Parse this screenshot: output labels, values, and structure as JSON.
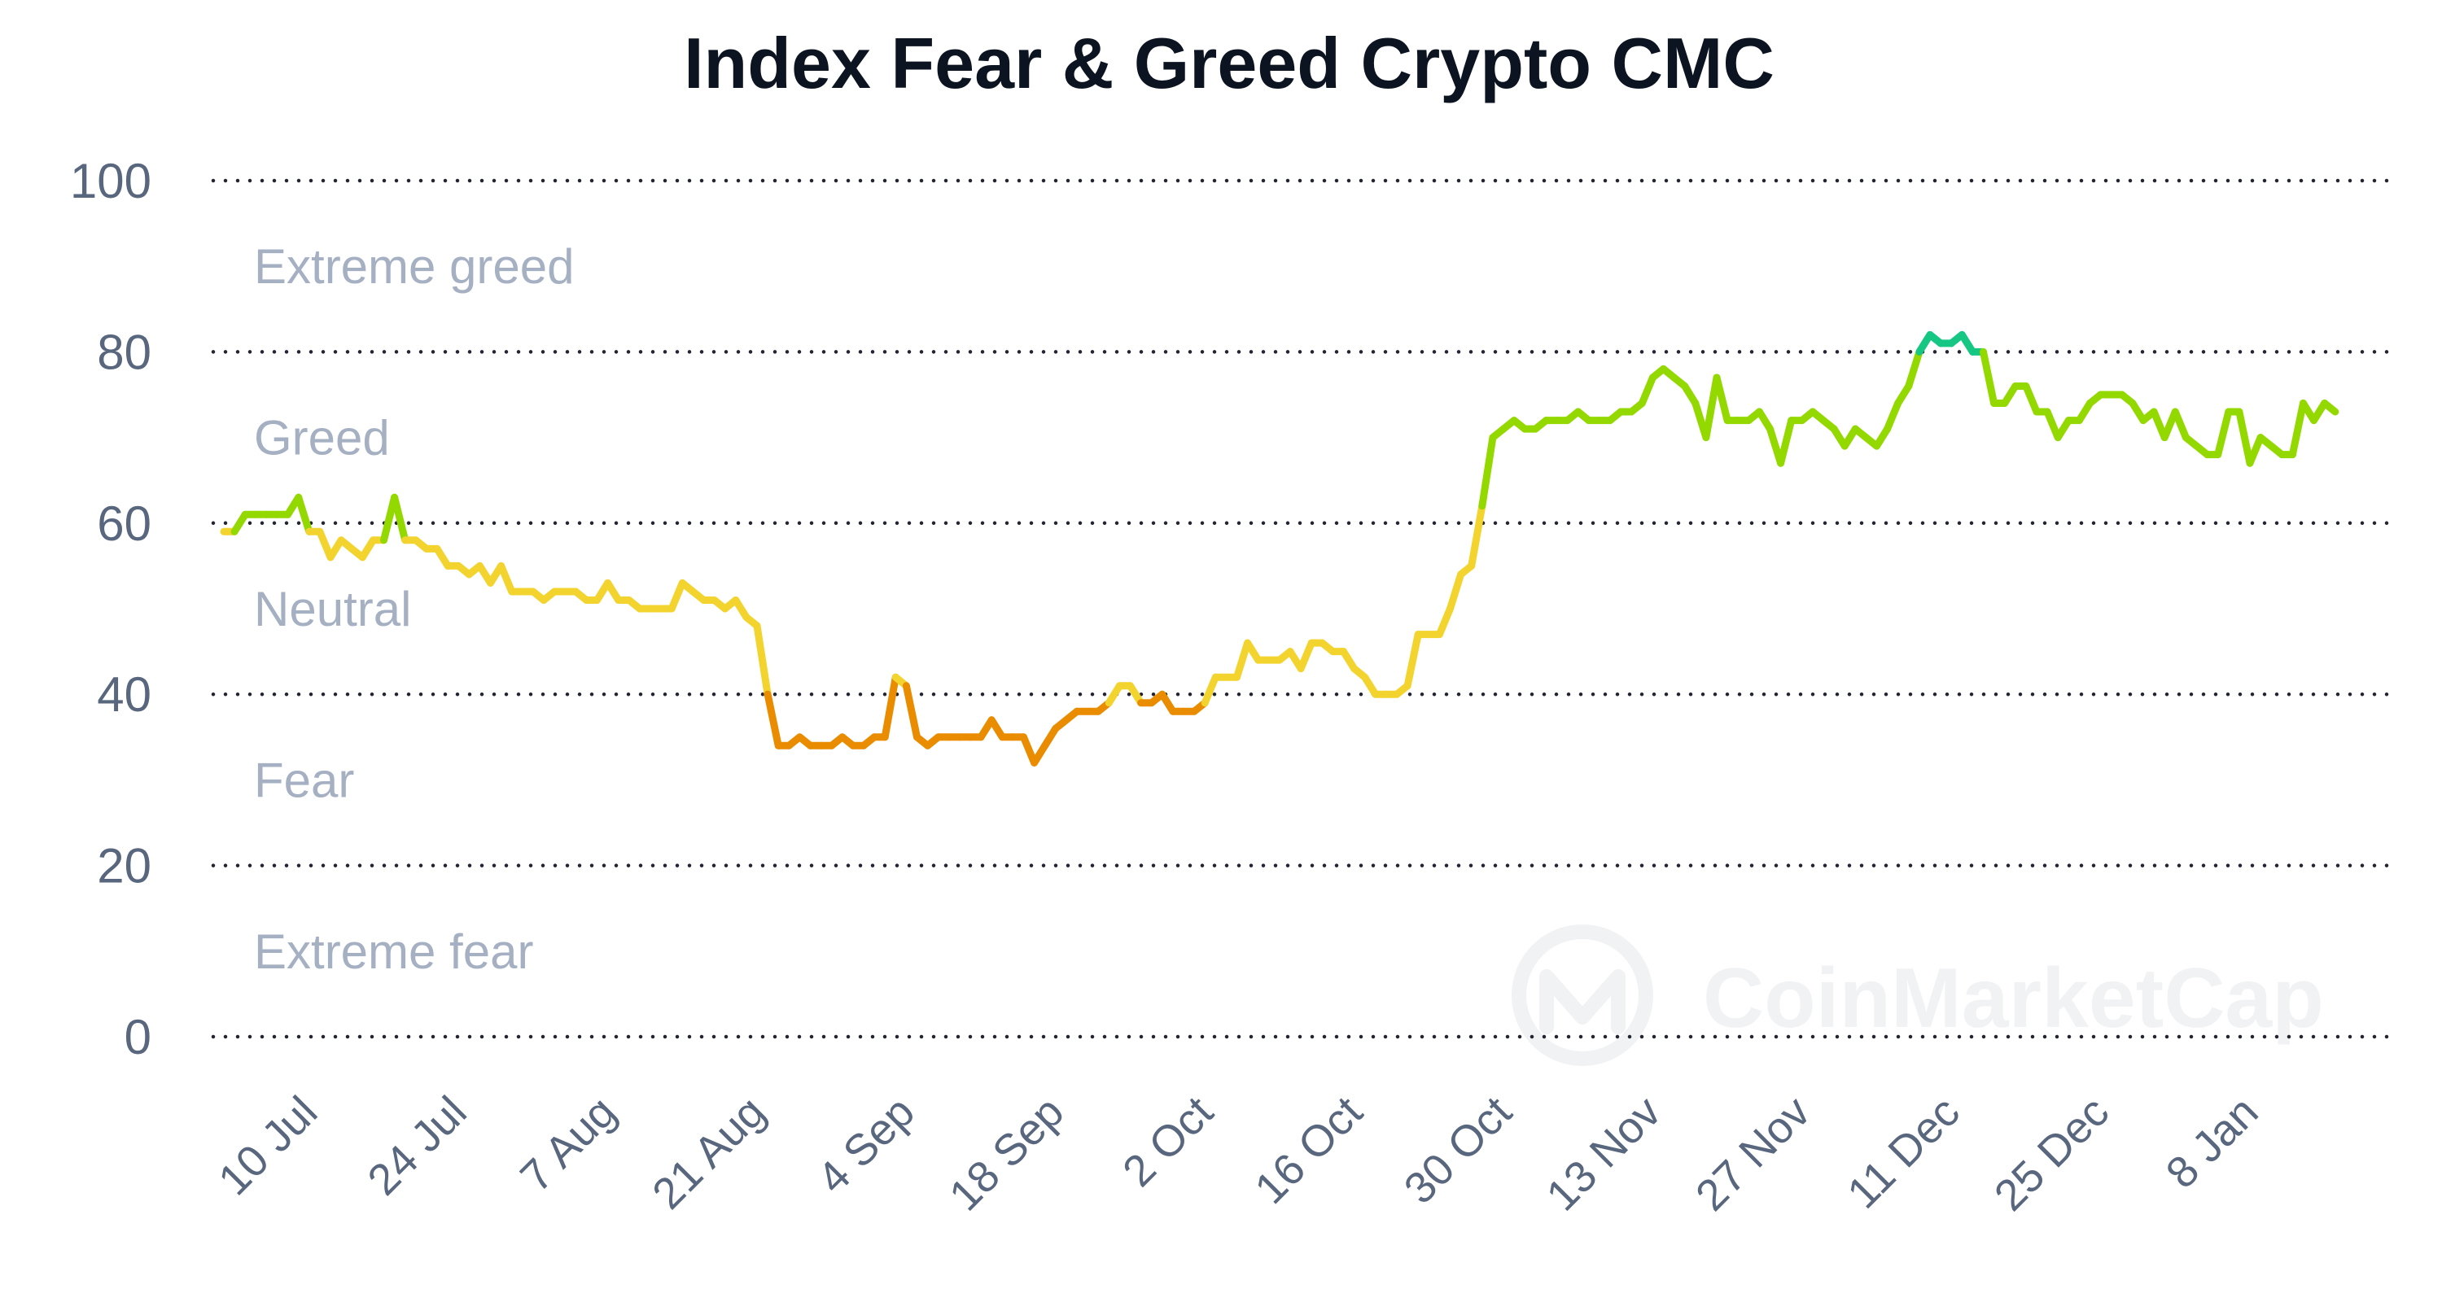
{
  "chart_data": {
    "type": "line",
    "title": "Index Fear & Greed Crypto CMC",
    "xlabel": "",
    "ylabel": "",
    "ylim": [
      0,
      100
    ],
    "yticks": [
      "0",
      "20",
      "40",
      "60",
      "80",
      "100"
    ],
    "xticks": [
      "10 Jul",
      "24 Jul",
      "7 Aug",
      "21 Aug",
      "4 Sep",
      "18 Sep",
      "2 Oct",
      "16 Oct",
      "30 Oct",
      "13 Nov",
      "27 Nov",
      "11 Dec",
      "25 Dec",
      "8 Jan"
    ],
    "x_range": [
      "2023-07-01",
      "2024-01-13"
    ],
    "grid": true,
    "legend": "none",
    "zones": [
      {
        "label": "Extreme greed",
        "range": [
          80,
          100
        ],
        "color": "#16c784"
      },
      {
        "label": "Greed",
        "range": [
          60,
          80
        ],
        "color": "#93d900"
      },
      {
        "label": "Neutral",
        "range": [
          40,
          60
        ],
        "color": "#f3d42f"
      },
      {
        "label": "Fear",
        "range": [
          20,
          40
        ],
        "color": "#ea8c00"
      },
      {
        "label": "Extreme fear",
        "range": [
          0,
          20
        ],
        "color": "#ea3943"
      }
    ],
    "points": [
      [
        "2023-07-01",
        59
      ],
      [
        "2023-07-02",
        59
      ],
      [
        "2023-07-03",
        61
      ],
      [
        "2023-07-04",
        61
      ],
      [
        "2023-07-05",
        61
      ],
      [
        "2023-07-06",
        61
      ],
      [
        "2023-07-07",
        61
      ],
      [
        "2023-07-08",
        63
      ],
      [
        "2023-07-09",
        59
      ],
      [
        "2023-07-10",
        59
      ],
      [
        "2023-07-11",
        56
      ],
      [
        "2023-07-12",
        58
      ],
      [
        "2023-07-13",
        57
      ],
      [
        "2023-07-14",
        56
      ],
      [
        "2023-07-15",
        58
      ],
      [
        "2023-07-16",
        58
      ],
      [
        "2023-07-17",
        63
      ],
      [
        "2023-07-18",
        58
      ],
      [
        "2023-07-19",
        58
      ],
      [
        "2023-07-20",
        57
      ],
      [
        "2023-07-21",
        57
      ],
      [
        "2023-07-22",
        55
      ],
      [
        "2023-07-23",
        55
      ],
      [
        "2023-07-24",
        54
      ],
      [
        "2023-07-25",
        55
      ],
      [
        "2023-07-26",
        53
      ],
      [
        "2023-07-27",
        55
      ],
      [
        "2023-07-28",
        52
      ],
      [
        "2023-07-29",
        52
      ],
      [
        "2023-07-30",
        52
      ],
      [
        "2023-07-31",
        51
      ],
      [
        "2023-08-01",
        52
      ],
      [
        "2023-08-02",
        52
      ],
      [
        "2023-08-03",
        52
      ],
      [
        "2023-08-04",
        51
      ],
      [
        "2023-08-05",
        51
      ],
      [
        "2023-08-06",
        53
      ],
      [
        "2023-08-07",
        51
      ],
      [
        "2023-08-08",
        51
      ],
      [
        "2023-08-09",
        50
      ],
      [
        "2023-08-10",
        50
      ],
      [
        "2023-08-11",
        50
      ],
      [
        "2023-08-12",
        50
      ],
      [
        "2023-08-13",
        53
      ],
      [
        "2023-08-14",
        52
      ],
      [
        "2023-08-15",
        51
      ],
      [
        "2023-08-16",
        51
      ],
      [
        "2023-08-17",
        50
      ],
      [
        "2023-08-18",
        51
      ],
      [
        "2023-08-19",
        49
      ],
      [
        "2023-08-20",
        48
      ],
      [
        "2023-08-21",
        40
      ],
      [
        "2023-08-22",
        34
      ],
      [
        "2023-08-23",
        34
      ],
      [
        "2023-08-24",
        35
      ],
      [
        "2023-08-25",
        34
      ],
      [
        "2023-08-26",
        34
      ],
      [
        "2023-08-27",
        34
      ],
      [
        "2023-08-28",
        35
      ],
      [
        "2023-08-29",
        34
      ],
      [
        "2023-08-30",
        34
      ],
      [
        "2023-08-31",
        35
      ],
      [
        "2023-09-01",
        35
      ],
      [
        "2023-09-02",
        42
      ],
      [
        "2023-09-03",
        41
      ],
      [
        "2023-09-04",
        35
      ],
      [
        "2023-09-05",
        34
      ],
      [
        "2023-09-06",
        35
      ],
      [
        "2023-09-07",
        35
      ],
      [
        "2023-09-08",
        35
      ],
      [
        "2023-09-09",
        35
      ],
      [
        "2023-09-10",
        35
      ],
      [
        "2023-09-11",
        37
      ],
      [
        "2023-09-12",
        35
      ],
      [
        "2023-09-13",
        35
      ],
      [
        "2023-09-14",
        35
      ],
      [
        "2023-09-15",
        32
      ],
      [
        "2023-09-16",
        34
      ],
      [
        "2023-09-17",
        36
      ],
      [
        "2023-09-18",
        37
      ],
      [
        "2023-09-19",
        38
      ],
      [
        "2023-09-20",
        38
      ],
      [
        "2023-09-21",
        38
      ],
      [
        "2023-09-22",
        39
      ],
      [
        "2023-09-23",
        41
      ],
      [
        "2023-09-24",
        41
      ],
      [
        "2023-09-25",
        39
      ],
      [
        "2023-09-26",
        39
      ],
      [
        "2023-09-27",
        40
      ],
      [
        "2023-09-28",
        38
      ],
      [
        "2023-09-29",
        38
      ],
      [
        "2023-09-30",
        38
      ],
      [
        "2023-10-01",
        39
      ],
      [
        "2023-10-02",
        42
      ],
      [
        "2023-10-03",
        42
      ],
      [
        "2023-10-04",
        42
      ],
      [
        "2023-10-05",
        46
      ],
      [
        "2023-10-06",
        44
      ],
      [
        "2023-10-07",
        44
      ],
      [
        "2023-10-08",
        44
      ],
      [
        "2023-10-09",
        45
      ],
      [
        "2023-10-10",
        43
      ],
      [
        "2023-10-11",
        46
      ],
      [
        "2023-10-12",
        46
      ],
      [
        "2023-10-13",
        45
      ],
      [
        "2023-10-14",
        45
      ],
      [
        "2023-10-15",
        43
      ],
      [
        "2023-10-16",
        42
      ],
      [
        "2023-10-17",
        40
      ],
      [
        "2023-10-18",
        40
      ],
      [
        "2023-10-19",
        40
      ],
      [
        "2023-10-20",
        41
      ],
      [
        "2023-10-21",
        47
      ],
      [
        "2023-10-22",
        47
      ],
      [
        "2023-10-23",
        47
      ],
      [
        "2023-10-24",
        50
      ],
      [
        "2023-10-25",
        54
      ],
      [
        "2023-10-26",
        55
      ],
      [
        "2023-10-27",
        62
      ],
      [
        "2023-10-28",
        70
      ],
      [
        "2023-10-29",
        71
      ],
      [
        "2023-10-30",
        72
      ],
      [
        "2023-10-31",
        71
      ],
      [
        "2023-11-01",
        71
      ],
      [
        "2023-11-02",
        72
      ],
      [
        "2023-11-03",
        72
      ],
      [
        "2023-11-04",
        72
      ],
      [
        "2023-11-05",
        73
      ],
      [
        "2023-11-06",
        72
      ],
      [
        "2023-11-07",
        72
      ],
      [
        "2023-11-08",
        72
      ],
      [
        "2023-11-09",
        73
      ],
      [
        "2023-11-10",
        73
      ],
      [
        "2023-11-11",
        74
      ],
      [
        "2023-11-12",
        77
      ],
      [
        "2023-11-13",
        78
      ],
      [
        "2023-11-14",
        77
      ],
      [
        "2023-11-15",
        76
      ],
      [
        "2023-11-16",
        74
      ],
      [
        "2023-11-17",
        70
      ],
      [
        "2023-11-18",
        77
      ],
      [
        "2023-11-19",
        72
      ],
      [
        "2023-11-20",
        72
      ],
      [
        "2023-11-21",
        72
      ],
      [
        "2023-11-22",
        73
      ],
      [
        "2023-11-23",
        71
      ],
      [
        "2023-11-24",
        67
      ],
      [
        "2023-11-25",
        72
      ],
      [
        "2023-11-26",
        72
      ],
      [
        "2023-11-27",
        73
      ],
      [
        "2023-11-28",
        72
      ],
      [
        "2023-11-29",
        71
      ],
      [
        "2023-11-30",
        69
      ],
      [
        "2023-12-01",
        71
      ],
      [
        "2023-12-02",
        70
      ],
      [
        "2023-12-03",
        69
      ],
      [
        "2023-12-04",
        71
      ],
      [
        "2023-12-05",
        74
      ],
      [
        "2023-12-06",
        76
      ],
      [
        "2023-12-07",
        80
      ],
      [
        "2023-12-08",
        82
      ],
      [
        "2023-12-09",
        81
      ],
      [
        "2023-12-10",
        81
      ],
      [
        "2023-12-11",
        82
      ],
      [
        "2023-12-12",
        80
      ],
      [
        "2023-12-13",
        80
      ],
      [
        "2023-12-14",
        74
      ],
      [
        "2023-12-15",
        74
      ],
      [
        "2023-12-16",
        76
      ],
      [
        "2023-12-17",
        76
      ],
      [
        "2023-12-18",
        73
      ],
      [
        "2023-12-19",
        73
      ],
      [
        "2023-12-20",
        70
      ],
      [
        "2023-12-21",
        72
      ],
      [
        "2023-12-22",
        72
      ],
      [
        "2023-12-23",
        74
      ],
      [
        "2023-12-24",
        75
      ],
      [
        "2023-12-25",
        75
      ],
      [
        "2023-12-26",
        75
      ],
      [
        "2023-12-27",
        74
      ],
      [
        "2023-12-28",
        72
      ],
      [
        "2023-12-29",
        73
      ],
      [
        "2023-12-30",
        70
      ],
      [
        "2023-12-31",
        73
      ],
      [
        "2024-01-01",
        70
      ],
      [
        "2024-01-02",
        69
      ],
      [
        "2024-01-03",
        68
      ],
      [
        "2024-01-04",
        68
      ],
      [
        "2024-01-05",
        73
      ],
      [
        "2024-01-06",
        73
      ],
      [
        "2024-01-07",
        67
      ],
      [
        "2024-01-08",
        70
      ],
      [
        "2024-01-09",
        69
      ],
      [
        "2024-01-10",
        68
      ],
      [
        "2024-01-11",
        68
      ],
      [
        "2024-01-12",
        74
      ],
      [
        "2024-01-13",
        72
      ],
      [
        "2024-01-14",
        74
      ],
      [
        "2024-01-15",
        73
      ]
    ]
  },
  "watermark": {
    "text": "CoinMarketCap",
    "icon": "coinmarketcap-logo-icon"
  }
}
